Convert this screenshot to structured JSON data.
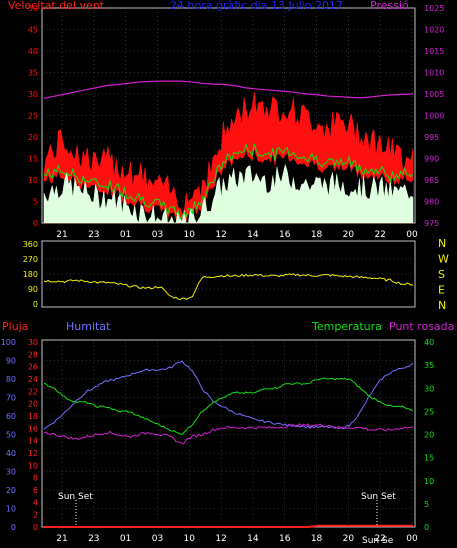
{
  "colors": {
    "background": "#000000",
    "frame": "#c0c0c0",
    "grid": "#606060",
    "wind_speed": "#ff1010",
    "wind_gust": "#ff1010",
    "wind_avg_green": "#10e010",
    "wind_min_white": "#e0ffe0",
    "pressure": "#d020d0",
    "direction": "#f0f000",
    "rain": "#ff2020",
    "humidity": "#7070ff",
    "temperature": "#10e010",
    "dewpoint": "#d020d0",
    "sunset_marker": "#ffffff",
    "time_tick_label": "#ffffff"
  },
  "texts": {
    "wind_label": "Velocitat del vent",
    "title": "24 hora gràfic dia  13 Julio 2017",
    "pressure_label": "Pressió",
    "compass": [
      "N",
      "W",
      "S",
      "E",
      "N"
    ],
    "rain_label": "Pluja",
    "humidity_label": "Humitat",
    "temp_label": "Temperatura",
    "dew_label": "Punt rosada",
    "sunset_1": "Sun Set",
    "sunset_2": "Sun Set",
    "sunrise_overlap": "Sun Se"
  },
  "chart_data": [
    {
      "type": "line",
      "name": "wind",
      "x_ticks": [
        "21",
        "23",
        "01",
        "03",
        "10",
        "12",
        "14",
        "16",
        "18",
        "20",
        "22",
        "00"
      ],
      "y_left": {
        "ticks": [
          0,
          5,
          10,
          15,
          20,
          25,
          30,
          35,
          40,
          45,
          50
        ],
        "range": [
          0,
          50
        ]
      },
      "y_right": {
        "ticks": [
          975,
          980,
          985,
          990,
          995,
          1000,
          1005,
          1010,
          1015,
          1020,
          1025
        ],
        "range": [
          975,
          1025
        ]
      },
      "series": [
        {
          "key": "gust",
          "values": [
            13,
            16,
            18,
            15,
            14,
            12,
            13,
            12,
            11,
            10,
            8,
            7,
            6,
            4,
            5,
            8,
            12,
            19,
            22,
            25,
            27,
            26,
            25,
            26,
            24,
            23,
            22,
            21,
            22,
            21,
            20,
            18,
            17,
            15,
            14,
            16
          ]
        },
        {
          "key": "avg",
          "values": [
            11,
            12,
            12,
            11,
            10,
            9,
            9,
            8,
            7,
            6,
            5,
            4,
            3,
            2,
            3,
            6,
            10,
            14,
            16,
            17,
            17,
            16,
            16,
            17,
            16,
            15,
            15,
            14,
            14,
            14,
            13,
            12,
            12,
            11,
            11,
            12
          ]
        },
        {
          "key": "min",
          "values": [
            7,
            8,
            9,
            8,
            7,
            6,
            6,
            5,
            4,
            3,
            2,
            1,
            0,
            0,
            1,
            3,
            6,
            9,
            10,
            11,
            11,
            10,
            10,
            11,
            10,
            9,
            9,
            9,
            9,
            9,
            8,
            8,
            8,
            7,
            7,
            8
          ]
        },
        {
          "key": "pressure",
          "values": [
            1004,
            1004.5,
            1005,
            1005.5,
            1006,
            1006.5,
            1007,
            1007.2,
            1007.5,
            1007.8,
            1007.9,
            1008,
            1008,
            1008,
            1007.8,
            1007.5,
            1007.3,
            1007.2,
            1007,
            1006.5,
            1006.2,
            1006,
            1005.8,
            1005.6,
            1005.3,
            1005,
            1004.8,
            1004.5,
            1004.4,
            1004.2,
            1004.1,
            1004.3,
            1004.6,
            1004.8,
            1004.9,
            1005
          ]
        }
      ]
    },
    {
      "type": "line",
      "name": "direction",
      "y_left": {
        "ticks": [
          0,
          90,
          180,
          270,
          360
        ],
        "range": [
          0,
          360
        ]
      },
      "series": [
        {
          "key": "direction",
          "values": [
            140,
            138,
            135,
            142,
            137,
            130,
            128,
            120,
            110,
            100,
            95,
            105,
            45,
            30,
            40,
            160,
            165,
            170,
            168,
            172,
            175,
            170,
            168,
            173,
            176,
            172,
            170,
            174,
            168,
            165,
            160,
            158,
            150,
            140,
            120,
            118
          ]
        }
      ]
    },
    {
      "type": "line",
      "name": "humidity_temp",
      "y_humidity": {
        "ticks": [
          0,
          10,
          20,
          30,
          40,
          50,
          60,
          70,
          80,
          90,
          100
        ],
        "range": [
          0,
          100
        ]
      },
      "y_rain": {
        "ticks": [
          0,
          2,
          4,
          6,
          8,
          10,
          12,
          14,
          16,
          18,
          20,
          22,
          24,
          26,
          28,
          30
        ],
        "range": [
          0,
          30
        ]
      },
      "y_temp": {
        "ticks": [
          0,
          5,
          10,
          15,
          20,
          25,
          30,
          35,
          40
        ],
        "range": [
          0,
          40
        ]
      },
      "series": [
        {
          "key": "humidity",
          "values": [
            53,
            57,
            62,
            68,
            73,
            76,
            79,
            80,
            82,
            84,
            85,
            85,
            86,
            90,
            85,
            75,
            68,
            65,
            62,
            60,
            58,
            57,
            56,
            55,
            55,
            54,
            54,
            54,
            53,
            55,
            62,
            72,
            80,
            84,
            86,
            88
          ]
        },
        {
          "key": "temperature",
          "values": [
            31,
            30,
            28,
            27,
            27,
            26,
            26,
            25,
            25,
            24,
            23,
            22,
            21,
            20,
            22,
            25,
            27,
            28,
            29,
            29,
            29,
            30,
            30,
            31,
            31,
            31,
            32,
            32,
            32,
            32,
            30,
            28,
            27,
            26,
            26,
            25
          ]
        },
        {
          "key": "dewpoint",
          "values": [
            20.5,
            20,
            19.5,
            19,
            19.5,
            20,
            20.5,
            20,
            19.5,
            20,
            20.5,
            20,
            19.5,
            18,
            19.5,
            20,
            21,
            21.5,
            21.5,
            21.5,
            21.5,
            21.5,
            21.5,
            21.8,
            22,
            22,
            22,
            22,
            21.5,
            21.5,
            21.5,
            21,
            21,
            21,
            21.5,
            21.5
          ]
        },
        {
          "key": "rain",
          "values": [
            0,
            0,
            0,
            0,
            0,
            0,
            0,
            0,
            0,
            0,
            0,
            0,
            0,
            0,
            0,
            0,
            0,
            0,
            0,
            0,
            0,
            0,
            0,
            0,
            0,
            0,
            0.2,
            0.2,
            0.2,
            0.2,
            0.2,
            0.2,
            0.2,
            0.2,
            0.2,
            0.2
          ]
        }
      ]
    }
  ]
}
